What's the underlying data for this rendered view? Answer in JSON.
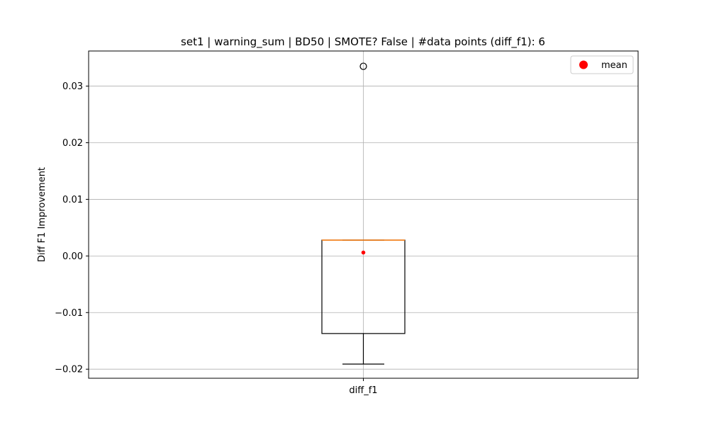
{
  "chart_data": {
    "type": "box",
    "title": "set1 | warning_sum | BD50 | SMOTE? False | #data points (diff_f1): 6",
    "xlabel": "",
    "ylabel": "Diff F1 Improvement",
    "categories": [
      "diff_f1"
    ],
    "ylim": [
      -0.0216,
      0.0362
    ],
    "yticks": [
      -0.02,
      -0.01,
      0.0,
      0.01,
      0.02,
      0.03
    ],
    "ytick_labels": [
      "−0.02",
      "−0.01",
      "0.00",
      "0.01",
      "0.02",
      "0.03"
    ],
    "grid": true,
    "legend": {
      "position": "top-right",
      "entries": [
        {
          "label": "mean",
          "color": "#ff0000"
        }
      ]
    },
    "boxes": [
      {
        "name": "diff_f1",
        "whisker_low": -0.0191,
        "q1": -0.0137,
        "median": 0.0028,
        "q3": 0.0028,
        "whisker_high": 0.0028,
        "mean": 0.0006,
        "outliers": [
          0.0335
        ]
      }
    ],
    "colors": {
      "box": "#000000",
      "median": "#ff7f0e",
      "mean": "#ff0000",
      "grid": "#b0b0b0"
    }
  }
}
